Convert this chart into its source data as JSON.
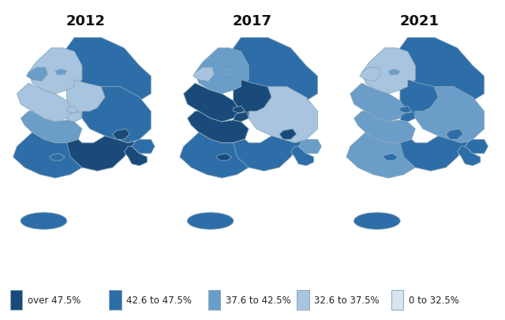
{
  "title_2012": "2012",
  "title_2017": "2017",
  "title_2021": "2021",
  "colors": {
    "c4": "#1a4a7a",
    "c3": "#2d6da8",
    "c2": "#6a9dc8",
    "c1": "#a8c4de",
    "c0": "#d6e5f0"
  },
  "legend_labels": [
    "over 47.5%",
    "42.6 to 47.5%",
    "37.6 to 42.5%",
    "32.6 to 37.5%",
    "0 to 32.5%"
  ],
  "border_color": "#8aaabb",
  "background_color": "#ffffff",
  "title_fontsize": 13,
  "legend_fontsize": 8.5,
  "year_colors_2012": {
    "Gangwon": 3,
    "Gyeonggi": 1,
    "Seoul": 2,
    "Incheon": 2,
    "Chungbuk": 1,
    "Chungnam": 1,
    "Daejeon": 1,
    "Sejong": 1,
    "Jeonbuk": 2,
    "Jeonnam": 3,
    "Gwangju": 3,
    "Gyeongbuk": 3,
    "Daegu": 4,
    "Gyeongnam": 4,
    "Busan": 4,
    "Ulsan": 3,
    "Jeju": 3
  },
  "year_colors_2017": {
    "Gangwon": 3,
    "Gyeonggi": 2,
    "Seoul": 2,
    "Incheon": 1,
    "Chungbuk": 4,
    "Chungnam": 4,
    "Daejeon": 4,
    "Sejong": 4,
    "Jeonbuk": 4,
    "Jeonnam": 3,
    "Gwangju": 4,
    "Gyeongbuk": 1,
    "Daegu": 4,
    "Gyeongnam": 3,
    "Busan": 3,
    "Ulsan": 2,
    "Jeju": 3
  },
  "year_colors_2021": {
    "Gangwon": 3,
    "Gyeonggi": 1,
    "Seoul": 2,
    "Incheon": 1,
    "Chungbuk": 3,
    "Chungnam": 2,
    "Daejeon": 3,
    "Sejong": 3,
    "Jeonbuk": 2,
    "Jeonnam": 2,
    "Gwangju": 3,
    "Gyeongbuk": 2,
    "Daegu": 3,
    "Gyeongnam": 3,
    "Busan": 3,
    "Ulsan": 3,
    "Jeju": 3
  }
}
